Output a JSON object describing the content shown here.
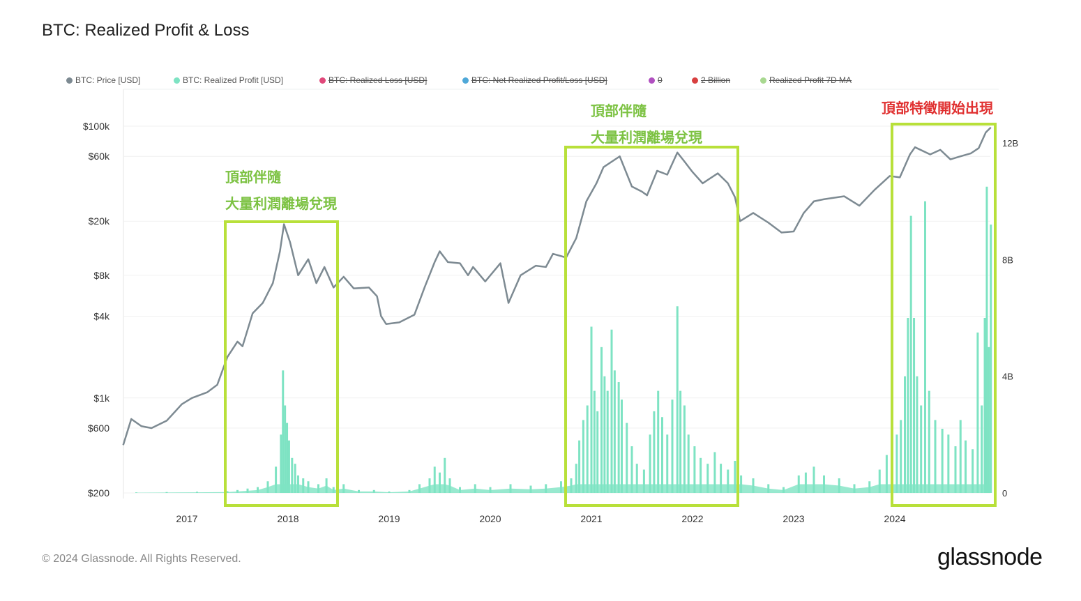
{
  "chart_data": {
    "type": "line+bar",
    "title": "BTC: Realized Profit & Loss",
    "legend": [
      {
        "label": "BTC: Price [USD]",
        "color": "#7d8a92",
        "active": true
      },
      {
        "label": "BTC: Realized Profit [USD]",
        "color": "#7ee3c3",
        "active": true
      },
      {
        "label": "BTC: Realized Loss [USD]",
        "color": "#e0487a",
        "active": false
      },
      {
        "label": "BTC: Net Realized Profit/Loss [USD]",
        "color": "#4fa8d8",
        "active": false
      },
      {
        "label": "0",
        "color": "#b050c0",
        "active": false
      },
      {
        "label": "2 Billion",
        "color": "#d84040",
        "active": false
      },
      {
        "label": "Realized Profit 7D MA",
        "color": "#a8d890",
        "active": false
      }
    ],
    "legend_placement": "top",
    "x_ticks": [
      "2017",
      "2018",
      "2019",
      "2020",
      "2021",
      "2022",
      "2023",
      "2024"
    ],
    "x_range": [
      2016.37,
      2024.95
    ],
    "y_left": {
      "scale": "log",
      "range": [
        200,
        100000
      ],
      "ticks": [
        {
          "v": 100000,
          "l": "$100k"
        },
        {
          "v": 60000,
          "l": "$60k"
        },
        {
          "v": 20000,
          "l": "$20k"
        },
        {
          "v": 8000,
          "l": "$8k"
        },
        {
          "v": 4000,
          "l": "$4k"
        },
        {
          "v": 1000,
          "l": "$1k"
        },
        {
          "v": 600,
          "l": "$600"
        },
        {
          "v": 200,
          "l": "$200"
        }
      ]
    },
    "y_right": {
      "scale": "linear",
      "unit": "B",
      "range": [
        0,
        12
      ],
      "ticks": [
        {
          "v": 12,
          "l": "12B"
        },
        {
          "v": 8,
          "l": "8B"
        },
        {
          "v": 4,
          "l": "4B"
        },
        {
          "v": 0,
          "l": "0"
        }
      ]
    },
    "price": [
      [
        2016.37,
        450
      ],
      [
        2016.45,
        700
      ],
      [
        2016.55,
        620
      ],
      [
        2016.65,
        600
      ],
      [
        2016.8,
        680
      ],
      [
        2016.95,
        900
      ],
      [
        2017.05,
        1000
      ],
      [
        2017.2,
        1100
      ],
      [
        2017.3,
        1250
      ],
      [
        2017.4,
        2000
      ],
      [
        2017.5,
        2600
      ],
      [
        2017.55,
        2400
      ],
      [
        2017.65,
        4200
      ],
      [
        2017.75,
        5000
      ],
      [
        2017.85,
        7000
      ],
      [
        2017.92,
        12000
      ],
      [
        2017.96,
        19000
      ],
      [
        2018.02,
        14000
      ],
      [
        2018.1,
        8000
      ],
      [
        2018.2,
        10500
      ],
      [
        2018.28,
        7000
      ],
      [
        2018.36,
        9200
      ],
      [
        2018.45,
        6500
      ],
      [
        2018.55,
        7800
      ],
      [
        2018.65,
        6400
      ],
      [
        2018.8,
        6500
      ],
      [
        2018.88,
        5600
      ],
      [
        2018.92,
        4000
      ],
      [
        2018.97,
        3500
      ],
      [
        2019.1,
        3600
      ],
      [
        2019.25,
        4100
      ],
      [
        2019.35,
        6500
      ],
      [
        2019.45,
        10000
      ],
      [
        2019.5,
        12000
      ],
      [
        2019.58,
        10000
      ],
      [
        2019.7,
        9800
      ],
      [
        2019.78,
        8000
      ],
      [
        2019.83,
        9200
      ],
      [
        2019.95,
        7200
      ],
      [
        2020.1,
        9800
      ],
      [
        2020.18,
        5000
      ],
      [
        2020.3,
        8000
      ],
      [
        2020.45,
        9400
      ],
      [
        2020.55,
        9200
      ],
      [
        2020.62,
        11500
      ],
      [
        2020.75,
        10800
      ],
      [
        2020.85,
        15000
      ],
      [
        2020.95,
        28000
      ],
      [
        2021.05,
        38000
      ],
      [
        2021.12,
        50000
      ],
      [
        2021.28,
        60000
      ],
      [
        2021.4,
        36000
      ],
      [
        2021.5,
        33000
      ],
      [
        2021.55,
        31000
      ],
      [
        2021.65,
        47000
      ],
      [
        2021.75,
        44000
      ],
      [
        2021.85,
        64000
      ],
      [
        2021.92,
        55000
      ],
      [
        2022.0,
        46000
      ],
      [
        2022.1,
        38000
      ],
      [
        2022.25,
        45000
      ],
      [
        2022.35,
        38000
      ],
      [
        2022.42,
        30000
      ],
      [
        2022.47,
        20000
      ],
      [
        2022.6,
        23000
      ],
      [
        2022.75,
        19500
      ],
      [
        2022.88,
        16500
      ],
      [
        2023.0,
        16800
      ],
      [
        2023.1,
        23000
      ],
      [
        2023.2,
        28000
      ],
      [
        2023.3,
        29000
      ],
      [
        2023.5,
        30500
      ],
      [
        2023.65,
        26000
      ],
      [
        2023.8,
        34000
      ],
      [
        2023.95,
        43000
      ],
      [
        2024.05,
        42000
      ],
      [
        2024.15,
        62000
      ],
      [
        2024.2,
        70000
      ],
      [
        2024.35,
        62000
      ],
      [
        2024.45,
        67000
      ],
      [
        2024.55,
        57000
      ],
      [
        2024.65,
        60000
      ],
      [
        2024.75,
        63000
      ],
      [
        2024.83,
        69000
      ],
      [
        2024.9,
        90000
      ],
      [
        2024.95,
        98000
      ]
    ],
    "realized_profit_B": [
      [
        2016.5,
        0.02
      ],
      [
        2016.8,
        0.03
      ],
      [
        2017.1,
        0.04
      ],
      [
        2017.4,
        0.06
      ],
      [
        2017.5,
        0.1
      ],
      [
        2017.6,
        0.15
      ],
      [
        2017.7,
        0.2
      ],
      [
        2017.8,
        0.4
      ],
      [
        2017.88,
        0.9
      ],
      [
        2017.93,
        2.0
      ],
      [
        2017.95,
        4.2
      ],
      [
        2017.97,
        3.0
      ],
      [
        2017.99,
        2.4
      ],
      [
        2018.01,
        1.8
      ],
      [
        2018.04,
        1.2
      ],
      [
        2018.07,
        1.0
      ],
      [
        2018.1,
        0.6
      ],
      [
        2018.15,
        0.5
      ],
      [
        2018.2,
        0.4
      ],
      [
        2018.3,
        0.3
      ],
      [
        2018.38,
        0.5
      ],
      [
        2018.45,
        0.2
      ],
      [
        2018.55,
        0.3
      ],
      [
        2018.7,
        0.1
      ],
      [
        2018.85,
        0.1
      ],
      [
        2019.0,
        0.05
      ],
      [
        2019.2,
        0.1
      ],
      [
        2019.3,
        0.3
      ],
      [
        2019.4,
        0.5
      ],
      [
        2019.45,
        0.9
      ],
      [
        2019.5,
        0.7
      ],
      [
        2019.55,
        1.2
      ],
      [
        2019.6,
        0.5
      ],
      [
        2019.7,
        0.2
      ],
      [
        2019.85,
        0.3
      ],
      [
        2020.0,
        0.2
      ],
      [
        2020.2,
        0.3
      ],
      [
        2020.4,
        0.25
      ],
      [
        2020.55,
        0.3
      ],
      [
        2020.7,
        0.4
      ],
      [
        2020.8,
        0.5
      ],
      [
        2020.85,
        1.0
      ],
      [
        2020.88,
        1.8
      ],
      [
        2020.92,
        2.5
      ],
      [
        2020.96,
        3.0
      ],
      [
        2021.0,
        5.7
      ],
      [
        2021.03,
        3.5
      ],
      [
        2021.06,
        2.8
      ],
      [
        2021.1,
        5.0
      ],
      [
        2021.13,
        4.0
      ],
      [
        2021.16,
        3.5
      ],
      [
        2021.2,
        5.6
      ],
      [
        2021.23,
        4.2
      ],
      [
        2021.27,
        3.8
      ],
      [
        2021.3,
        3.2
      ],
      [
        2021.35,
        2.4
      ],
      [
        2021.4,
        1.6
      ],
      [
        2021.45,
        1.0
      ],
      [
        2021.52,
        0.8
      ],
      [
        2021.58,
        2.0
      ],
      [
        2021.62,
        2.8
      ],
      [
        2021.66,
        3.5
      ],
      [
        2021.7,
        2.6
      ],
      [
        2021.75,
        2.0
      ],
      [
        2021.8,
        3.2
      ],
      [
        2021.85,
        6.4
      ],
      [
        2021.88,
        3.5
      ],
      [
        2021.92,
        3.0
      ],
      [
        2021.96,
        2.0
      ],
      [
        2022.02,
        1.6
      ],
      [
        2022.08,
        1.2
      ],
      [
        2022.15,
        1.0
      ],
      [
        2022.22,
        1.4
      ],
      [
        2022.28,
        1.0
      ],
      [
        2022.35,
        0.8
      ],
      [
        2022.42,
        1.1
      ],
      [
        2022.48,
        0.6
      ],
      [
        2022.6,
        0.5
      ],
      [
        2022.75,
        0.3
      ],
      [
        2022.9,
        0.2
      ],
      [
        2023.05,
        0.6
      ],
      [
        2023.12,
        0.7
      ],
      [
        2023.2,
        0.9
      ],
      [
        2023.3,
        0.6
      ],
      [
        2023.45,
        0.5
      ],
      [
        2023.6,
        0.3
      ],
      [
        2023.75,
        0.4
      ],
      [
        2023.85,
        0.8
      ],
      [
        2023.92,
        1.3
      ],
      [
        2023.97,
        1.5
      ],
      [
        2024.02,
        2.0
      ],
      [
        2024.06,
        2.5
      ],
      [
        2024.1,
        4.0
      ],
      [
        2024.13,
        6.0
      ],
      [
        2024.16,
        9.5
      ],
      [
        2024.19,
        6.0
      ],
      [
        2024.22,
        4.0
      ],
      [
        2024.26,
        3.0
      ],
      [
        2024.3,
        10.0
      ],
      [
        2024.34,
        3.5
      ],
      [
        2024.4,
        2.5
      ],
      [
        2024.47,
        2.2
      ],
      [
        2024.53,
        2.0
      ],
      [
        2024.6,
        1.6
      ],
      [
        2024.65,
        2.5
      ],
      [
        2024.7,
        1.8
      ],
      [
        2024.77,
        1.5
      ],
      [
        2024.82,
        5.5
      ],
      [
        2024.86,
        3.0
      ],
      [
        2024.89,
        6.0
      ],
      [
        2024.91,
        10.5
      ],
      [
        2024.93,
        5.0
      ],
      [
        2024.95,
        9.2
      ]
    ]
  },
  "annotations": [
    {
      "lines": [
        "頂部伴隨",
        "大量利潤離場兌現"
      ],
      "color": "#7cc242",
      "box_color": "#b8e03a"
    },
    {
      "lines": [
        "頂部伴隨",
        "大量利潤離場兌現"
      ],
      "color": "#7cc242",
      "box_color": "#b8e03a"
    },
    {
      "lines": [
        "頂部特徵開始出現"
      ],
      "color": "#e03030",
      "box_color": "#b8e03a"
    }
  ],
  "footer": "© 2024 Glassnode. All Rights Reserved.",
  "logo": "glassnode"
}
